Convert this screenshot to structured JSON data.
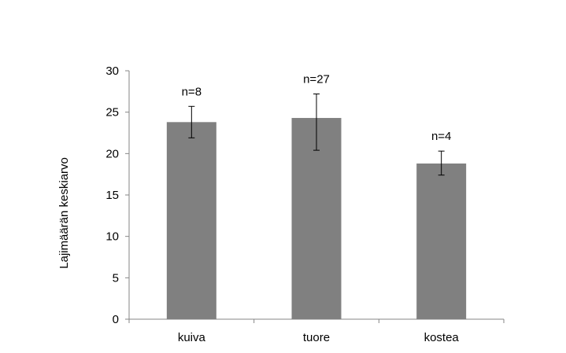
{
  "chart_data": {
    "type": "bar",
    "title": "",
    "xlabel": "",
    "ylabel": "Lajimäärän keskiarvo",
    "categories": [
      "kuiva",
      "tuore",
      "kostea"
    ],
    "values": [
      23.8,
      24.3,
      18.8
    ],
    "error_low": [
      21.9,
      20.4,
      17.4
    ],
    "error_high": [
      25.7,
      27.2,
      20.3
    ],
    "annotations": [
      "n=8",
      "n=27",
      "n=4"
    ],
    "ylim": [
      0,
      30
    ],
    "yticks": [
      0,
      5,
      10,
      15,
      20,
      25,
      30
    ],
    "grid": false,
    "legend": "none",
    "bar_color": "#808080"
  }
}
